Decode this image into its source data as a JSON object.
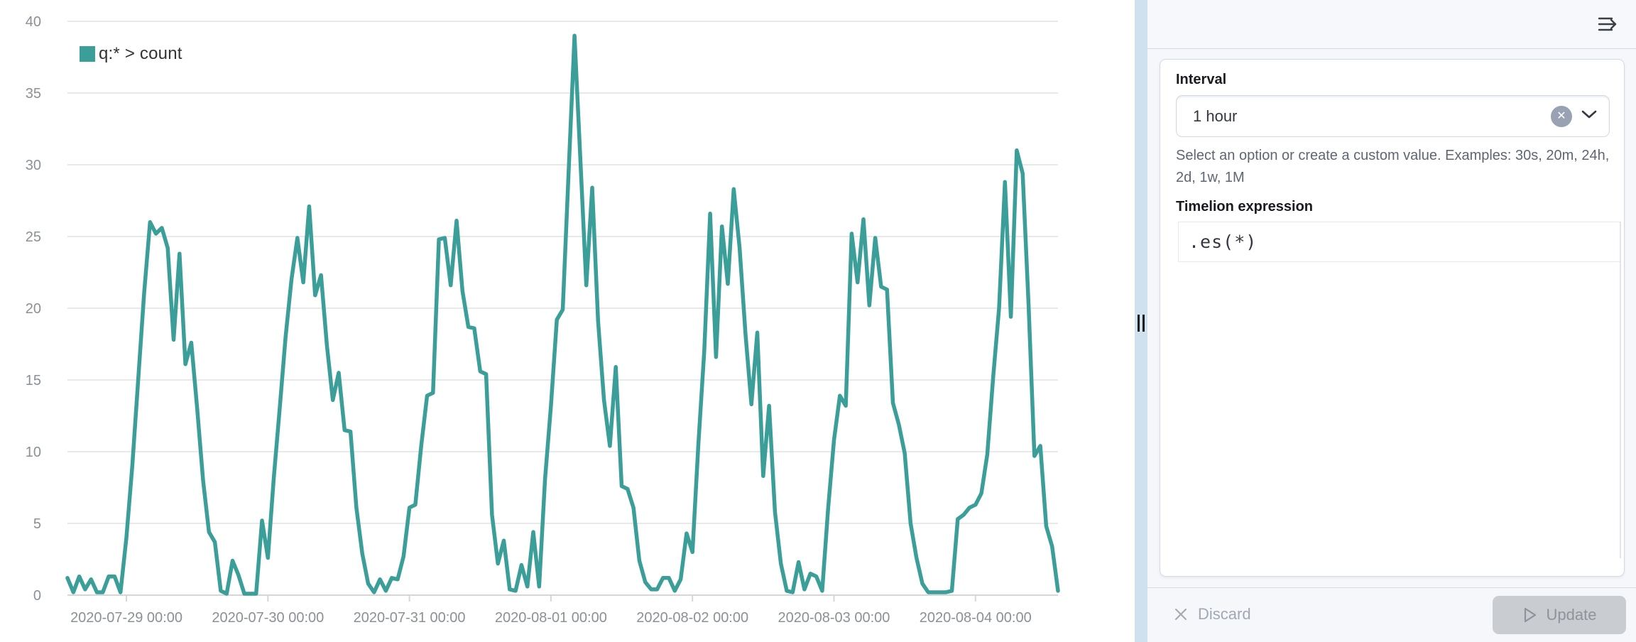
{
  "chart_pane": {
    "legend_label": "q:* > count"
  },
  "chart_data": {
    "type": "line",
    "title": "",
    "xlabel": "",
    "ylabel": "",
    "ylim": [
      0,
      40
    ],
    "y_ticks": [
      0,
      5,
      10,
      15,
      20,
      25,
      30,
      35,
      40
    ],
    "grid": "horizontal-only",
    "legend_position": "top-left",
    "x_start": "2020-07-28 14:00",
    "x_interval": "1 hour",
    "x_tick_labels": [
      "2020-07-29 00:00",
      "2020-07-30 00:00",
      "2020-07-31 00:00",
      "2020-08-01 00:00",
      "2020-08-02 00:00",
      "2020-08-03 00:00",
      "2020-08-04 00:00"
    ],
    "x_tick_hours": [
      10,
      34,
      58,
      82,
      106,
      130,
      154
    ],
    "series": [
      {
        "name": "q:* > count",
        "color": "#3b9e98",
        "values": [
          1.2,
          0.2,
          1.3,
          0.4,
          1.1,
          0.2,
          0.2,
          1.3,
          1.3,
          0.2,
          4,
          9,
          15,
          21,
          26,
          25.2,
          25.6,
          24.2,
          17.8,
          23.8,
          16.1,
          17.6,
          13,
          8,
          4.4,
          3.7,
          0.3,
          0.1,
          2.4,
          1.4,
          0.1,
          0.1,
          0.1,
          5.2,
          2.6,
          8.2,
          13,
          18,
          22,
          24.9,
          21.8,
          27.1,
          20.9,
          22.3,
          17.4,
          13.6,
          15.5,
          11.5,
          11.4,
          6.1,
          2.9,
          0.8,
          0.2,
          1.1,
          0.3,
          1.2,
          1.1,
          2.7,
          6.1,
          6.3,
          10.4,
          13.9,
          14.1,
          24.8,
          24.9,
          21.6,
          26.1,
          21.2,
          18.7,
          18.6,
          15.6,
          15.4,
          5.6,
          2.2,
          3.8,
          0.4,
          0.3,
          2.1,
          0.6,
          4.4,
          0.6,
          8.1,
          13.2,
          19.2,
          19.9,
          29.5,
          39,
          30.3,
          21.6,
          28.4,
          19.1,
          13.6,
          10.4,
          15.9,
          7.6,
          7.4,
          6.1,
          2.4,
          0.9,
          0.4,
          0.4,
          1.2,
          1.2,
          0.3,
          1.1,
          4.3,
          3,
          10.5,
          17,
          26.6,
          16.6,
          25.7,
          21.7,
          28.3,
          24.2,
          18.2,
          13.3,
          18.3,
          8.3,
          13.2,
          5.8,
          2.2,
          0.3,
          0.2,
          2.3,
          0.4,
          1.5,
          1.3,
          0.3,
          6,
          10.8,
          13.9,
          13.2,
          25.2,
          21.8,
          26.2,
          20.2,
          24.9,
          21.5,
          21.3,
          13.4,
          11.9,
          9.9,
          5,
          2.6,
          0.8,
          0.2,
          0.2,
          0.2,
          0.2,
          0.3,
          5.3,
          5.6,
          6.1,
          6.3,
          7.1,
          9.8,
          15.2,
          20,
          28.8,
          19.4,
          31,
          29.4,
          20.3,
          9.7,
          10.4,
          4.8,
          3.4,
          0.3
        ]
      }
    ]
  },
  "side_panel": {
    "collapse_icon": "menu-right-icon",
    "interval": {
      "label": "Interval",
      "value": "1 hour",
      "help": "Select an option or create a custom value. Examples: 30s, 20m, 24h, 2d, 1w, 1M"
    },
    "expression": {
      "label": "Timelion expression",
      "code": ".es(*)"
    },
    "footer": {
      "discard_label": "Discard",
      "update_label": "Update"
    }
  },
  "colors": {
    "series_teal": "#3b9e98",
    "grid_line": "#e2e2e2",
    "axis_line": "#d6d6d6",
    "axis_text": "#8b9097",
    "resizer_blue": "#cfe0ee",
    "panel_bg": "#f5f7fa",
    "card_border": "#d3dae6",
    "disabled_button_bg": "#c9ccd1"
  }
}
